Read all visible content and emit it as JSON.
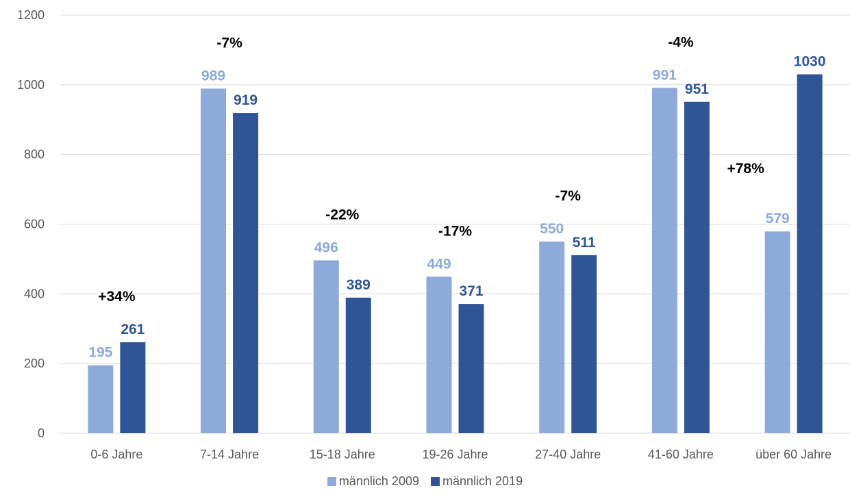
{
  "chart_data": {
    "type": "bar",
    "categories": [
      "0-6 Jahre",
      "7-14 Jahre",
      "15-18 Jahre",
      "19-26 Jahre",
      "27-40 Jahre",
      "41-60 Jahre",
      "über 60 Jahre"
    ],
    "series": [
      {
        "name": "männlich 2009",
        "values": [
          195,
          989,
          496,
          449,
          550,
          991,
          579
        ],
        "color": "#8eaadb"
      },
      {
        "name": "männlich 2019",
        "values": [
          261,
          919,
          389,
          371,
          511,
          951,
          1030
        ],
        "color": "#2f5597"
      }
    ],
    "annotations": [
      "+34%",
      "-7%",
      "-22%",
      "-17%",
      "-7%",
      "-4%",
      "+78%"
    ],
    "ylim": [
      0,
      1200
    ],
    "yticks": [
      0,
      200,
      400,
      600,
      800,
      1000,
      1200
    ],
    "grid": true,
    "legend_position": "bottom",
    "title": "",
    "xlabel": "",
    "ylabel": ""
  }
}
